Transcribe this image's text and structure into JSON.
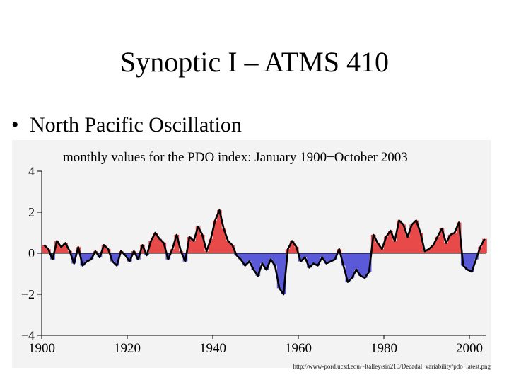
{
  "slide": {
    "title": "Synoptic I – ATMS 410",
    "bullet_marker": "•",
    "bullet": "North Pacific Oscillation",
    "source_url": "http://www-pord.ucsd.edu/~ltalley/sio210/Decadal_variability/pdo_latest.png"
  },
  "chart_data": {
    "type": "area",
    "title": "monthly values for the PDO index: January 1900−October 2003",
    "xlabel": "",
    "ylabel": "",
    "xlim": [
      1900,
      2003.8
    ],
    "ylim": [
      -4,
      4
    ],
    "x_ticks": [
      1900,
      1920,
      1940,
      1960,
      1980,
      2000
    ],
    "x_tick_labels": [
      "1900",
      "1920",
      "1940",
      "1960",
      "1980",
      "2000"
    ],
    "y_ticks": [
      4,
      2,
      0,
      -2,
      -4
    ],
    "y_tick_labels": [
      "4",
      "2",
      "0",
      "−2",
      "−4"
    ],
    "grid": false,
    "legend": "none",
    "positive_color": "#e84a4a",
    "negative_color": "#5a5ad8",
    "line_color": "#000000",
    "series": [
      {
        "x": [
          1900,
          1901,
          1902,
          1903,
          1904,
          1905,
          1906,
          1907,
          1908,
          1909,
          1910,
          1911,
          1912,
          1913,
          1914,
          1915,
          1916,
          1917,
          1918,
          1919,
          1920,
          1921,
          1922,
          1923,
          1924,
          1925,
          1926,
          1927,
          1928,
          1929,
          1930,
          1931,
          1932,
          1933,
          1934,
          1935,
          1936,
          1937,
          1938,
          1939,
          1940,
          1941,
          1942,
          1943,
          1944,
          1945,
          1946,
          1947,
          1948,
          1949,
          1950,
          1951,
          1952,
          1953,
          1954,
          1955,
          1956,
          1957,
          1958,
          1959,
          1960,
          1961,
          1962,
          1963,
          1964,
          1965,
          1966,
          1967,
          1968,
          1969,
          1970,
          1971,
          1972,
          1973,
          1974,
          1975,
          1976,
          1977,
          1978,
          1979,
          1980,
          1981,
          1982,
          1983,
          1984,
          1985,
          1986,
          1987,
          1988,
          1989,
          1990,
          1991,
          1992,
          1993,
          1994,
          1995,
          1996,
          1997,
          1998,
          1999,
          2000,
          2001,
          2002,
          2003
        ],
        "y": [
          0.4,
          0.2,
          -0.3,
          0.6,
          0.3,
          0.5,
          0.1,
          -0.5,
          0.3,
          -0.6,
          -0.4,
          -0.3,
          0.1,
          -0.2,
          0.4,
          0.2,
          -0.4,
          -0.6,
          0.1,
          -0.1,
          -0.4,
          0.1,
          -0.3,
          0.4,
          -0.1,
          0.6,
          1.0,
          0.7,
          0.5,
          -0.3,
          0.2,
          0.9,
          0.1,
          -0.4,
          0.8,
          0.6,
          1.3,
          0.9,
          0.1,
          0.7,
          1.6,
          2.1,
          1.2,
          0.6,
          0.4,
          -0.1,
          -0.3,
          -0.6,
          -0.4,
          -0.8,
          -1.1,
          -0.5,
          -0.8,
          -0.3,
          -0.6,
          -1.7,
          -2.0,
          0.2,
          0.6,
          0.3,
          -0.4,
          -0.2,
          -0.7,
          -0.5,
          -0.6,
          -0.2,
          -0.5,
          -0.4,
          -0.3,
          0.2,
          -0.6,
          -1.4,
          -1.2,
          -0.8,
          -1.1,
          -1.2,
          -0.9,
          0.9,
          0.5,
          0.2,
          0.8,
          1.1,
          0.6,
          1.6,
          1.4,
          0.8,
          1.4,
          1.6,
          1.0,
          0.1,
          0.2,
          0.4,
          0.8,
          1.2,
          0.5,
          0.9,
          1.0,
          1.5,
          -0.6,
          -0.8,
          -0.9,
          -0.3,
          0.3,
          0.7
        ]
      }
    ]
  }
}
